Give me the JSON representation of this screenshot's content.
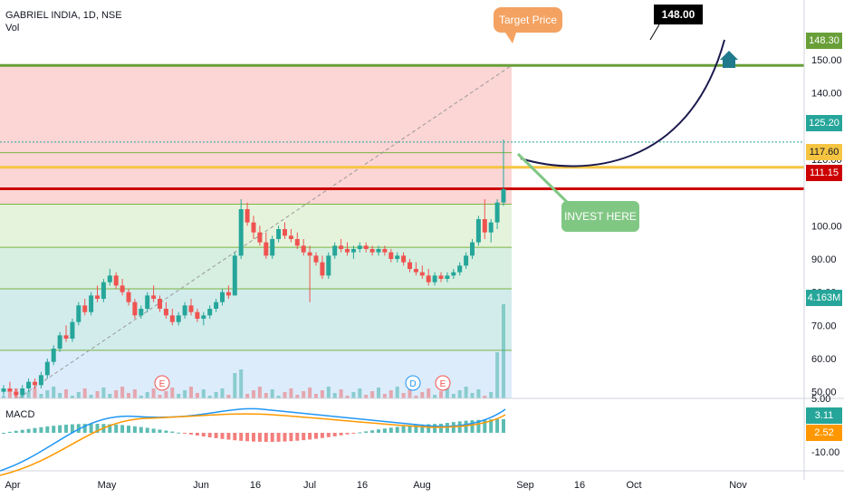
{
  "header": {
    "title": "GABRIEL INDIA, 1D, NSE",
    "vol_label": "Vol"
  },
  "macd_label": "MACD",
  "annotations": {
    "target_price": "Target Price",
    "target_value": "148.00",
    "invest_here": "INVEST HERE",
    "earnings_marker": "E",
    "dividend_marker": "D"
  },
  "price_axis": {
    "ticks": [
      "150.00",
      "140.00",
      "130.00",
      "120.00",
      "100.00",
      "90.00",
      "80.00",
      "70.00",
      "60.00",
      "50.00"
    ],
    "tags": [
      {
        "label": "148.30",
        "value": 148.3,
        "color": "#689f38"
      },
      {
        "label": "125.20",
        "value": 125.2,
        "color": "#26a69a"
      },
      {
        "label": "117.60",
        "value": 117.6,
        "color": "#f5c542"
      },
      {
        "label": "111.15",
        "value": 111.15,
        "color": "#cc0000"
      },
      {
        "label": "4.163M",
        "value": 4.163,
        "color": "#26a69a"
      }
    ]
  },
  "macd_axis": {
    "ticks": [
      "5.00",
      "-10.00"
    ],
    "tags": [
      {
        "label": "3.11",
        "color": "#26a69a"
      },
      {
        "label": "2.52",
        "color": "#ff9800"
      }
    ]
  },
  "time_axis": [
    "Apr",
    "May",
    "Jun",
    "16",
    "Jul",
    "16",
    "Aug",
    "Sep",
    "16",
    "Oct",
    "Nov"
  ],
  "colors": {
    "up": "#26a69a",
    "down": "#ef5350",
    "target_line": "#689f38",
    "yellow_line": "#f5c542",
    "red_line": "#cc0000",
    "curve": "#1a1a4e",
    "invest_box": "#81c784",
    "target_box": "#f4a261"
  },
  "icons": {
    "home": "home-icon"
  },
  "chart_data": {
    "type": "candlestick",
    "title": "GABRIEL INDIA, 1D, NSE",
    "ylim": [
      48,
      156
    ],
    "levels": [
      148.3,
      125.2,
      117.6,
      111.15
    ],
    "fib_levels": [
      148.3,
      122.0,
      106.5,
      93.5,
      81.0,
      62.5,
      48.0
    ],
    "candles": [
      [
        50,
        52,
        49,
        51
      ],
      [
        51,
        53,
        50,
        50
      ],
      [
        50,
        51,
        48,
        49
      ],
      [
        49,
        52,
        48,
        51
      ],
      [
        51,
        54,
        50,
        53
      ],
      [
        53,
        54,
        51,
        52
      ],
      [
        52,
        56,
        51,
        55
      ],
      [
        55,
        60,
        54,
        59
      ],
      [
        59,
        64,
        58,
        63
      ],
      [
        63,
        68,
        62,
        67
      ],
      [
        67,
        70,
        65,
        66
      ],
      [
        66,
        72,
        65,
        71
      ],
      [
        71,
        77,
        70,
        76
      ],
      [
        76,
        78,
        73,
        74
      ],
      [
        74,
        80,
        73,
        79
      ],
      [
        79,
        82,
        77,
        78
      ],
      [
        78,
        84,
        77,
        83
      ],
      [
        83,
        87,
        82,
        85
      ],
      [
        85,
        86,
        81,
        82
      ],
      [
        82,
        84,
        79,
        80
      ],
      [
        80,
        81,
        76,
        77
      ],
      [
        77,
        78,
        72,
        73
      ],
      [
        73,
        76,
        72,
        75
      ],
      [
        75,
        80,
        74,
        79
      ],
      [
        79,
        82,
        77,
        78
      ],
      [
        78,
        79,
        74,
        75
      ],
      [
        75,
        77,
        72,
        73
      ],
      [
        73,
        75,
        70,
        71
      ],
      [
        71,
        74,
        70,
        73
      ],
      [
        73,
        77,
        72,
        76
      ],
      [
        76,
        78,
        73,
        74
      ],
      [
        74,
        75,
        71,
        72
      ],
      [
        72,
        74,
        70,
        73
      ],
      [
        73,
        76,
        72,
        75
      ],
      [
        75,
        78,
        74,
        77
      ],
      [
        77,
        81,
        76,
        80
      ],
      [
        80,
        82,
        78,
        79
      ],
      [
        79,
        92,
        79,
        91
      ],
      [
        91,
        108,
        90,
        105
      ],
      [
        105,
        107,
        100,
        101
      ],
      [
        101,
        103,
        96,
        98
      ],
      [
        98,
        100,
        94,
        95
      ],
      [
        95,
        98,
        90,
        91
      ],
      [
        91,
        97,
        90,
        96
      ],
      [
        96,
        100,
        95,
        99
      ],
      [
        99,
        101,
        96,
        97
      ],
      [
        97,
        99,
        95,
        96
      ],
      [
        96,
        98,
        93,
        94
      ],
      [
        94,
        96,
        91,
        92
      ],
      [
        92,
        94,
        77,
        91
      ],
      [
        91,
        92,
        88,
        89
      ],
      [
        89,
        91,
        84,
        85
      ],
      [
        85,
        92,
        84,
        91
      ],
      [
        91,
        95,
        90,
        94
      ],
      [
        94,
        96,
        92,
        93
      ],
      [
        93,
        95,
        91,
        92
      ],
      [
        92,
        94,
        90,
        93
      ],
      [
        93,
        95,
        92,
        94
      ],
      [
        94,
        95,
        92,
        93
      ],
      [
        93,
        94,
        91,
        92
      ],
      [
        92,
        94,
        91,
        93
      ],
      [
        93,
        94,
        91,
        92
      ],
      [
        92,
        93,
        89,
        90
      ],
      [
        90,
        92,
        89,
        91
      ],
      [
        91,
        92,
        88,
        89
      ],
      [
        89,
        90,
        86,
        87
      ],
      [
        87,
        89,
        85,
        86
      ],
      [
        86,
        88,
        84,
        85
      ],
      [
        85,
        87,
        82,
        83
      ],
      [
        83,
        86,
        82,
        85
      ],
      [
        85,
        86,
        83,
        84
      ],
      [
        84,
        86,
        83,
        85
      ],
      [
        85,
        87,
        84,
        86
      ],
      [
        86,
        89,
        85,
        88
      ],
      [
        88,
        92,
        87,
        91
      ],
      [
        91,
        96,
        90,
        95
      ],
      [
        95,
        103,
        94,
        102
      ],
      [
        102,
        108,
        96,
        98
      ],
      [
        98,
        102,
        95,
        101
      ],
      [
        101,
        108,
        99,
        107
      ],
      [
        107,
        126,
        106,
        111
      ]
    ],
    "volume_note": "Vol 4.163M",
    "macd": {
      "macd": 3.11,
      "signal": 2.52
    }
  }
}
